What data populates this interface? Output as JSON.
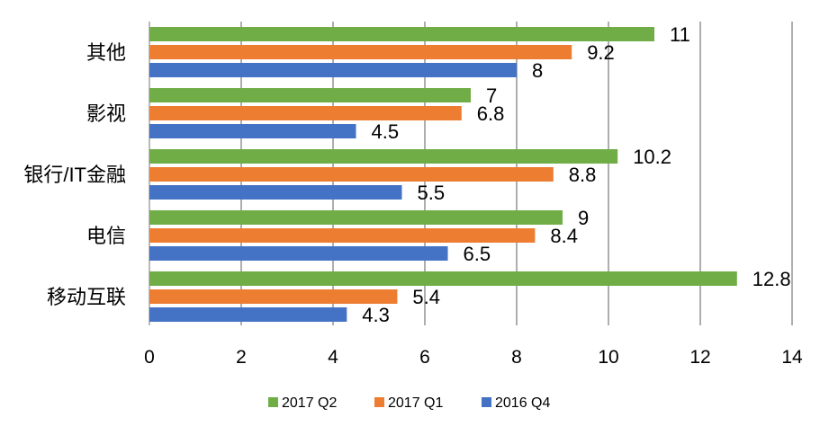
{
  "chart_data": {
    "type": "bar",
    "orientation": "horizontal",
    "categories": [
      "其他",
      "影视",
      "银行/IT金融",
      "电信",
      "移动互联"
    ],
    "series": [
      {
        "name": "2017 Q2",
        "color": "#70AD47",
        "values": [
          11,
          7,
          10.2,
          9,
          12.8
        ]
      },
      {
        "name": "2017 Q1",
        "color": "#ED7D31",
        "values": [
          9.2,
          6.8,
          8.8,
          8.4,
          5.4
        ]
      },
      {
        "name": "2016 Q4",
        "color": "#4472C4",
        "values": [
          8,
          4.5,
          5.5,
          6.5,
          4.3
        ]
      }
    ],
    "data_labels": [
      [
        "11",
        "7",
        "10.2",
        "9",
        "12.8"
      ],
      [
        "9.2",
        "6.8",
        "8.8",
        "8.4",
        "5.4"
      ],
      [
        "8",
        "4.5",
        "5.5",
        "6.5",
        "4.3"
      ]
    ],
    "x_ticks": [
      "0",
      "2",
      "4",
      "6",
      "8",
      "10",
      "12",
      "14"
    ],
    "xlim": [
      0,
      14
    ],
    "grid": true,
    "legend": "bottom-center"
  }
}
